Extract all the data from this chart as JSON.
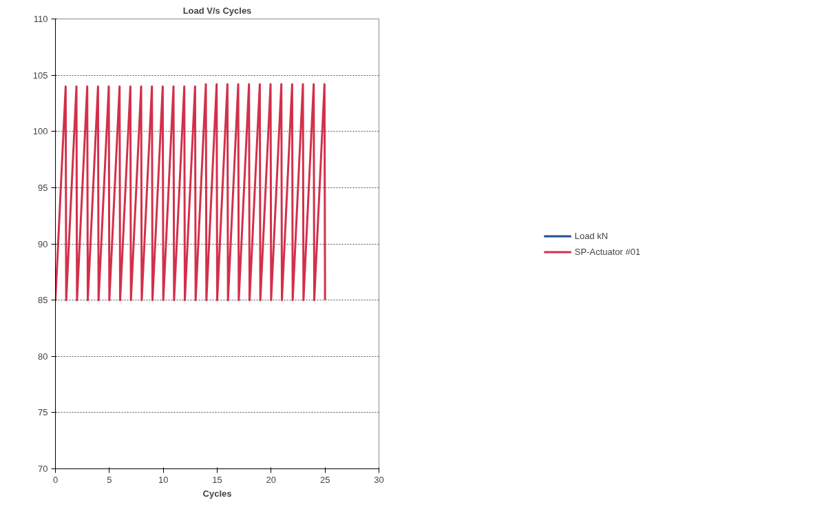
{
  "chart_data": {
    "type": "line",
    "title": "Load V/s Cycles",
    "xlabel": "Cycles",
    "xlim": [
      0,
      30
    ],
    "xticks": [
      0,
      5,
      10,
      15,
      20,
      25,
      30
    ],
    "ylim": [
      70,
      110
    ],
    "yticks": [
      70,
      75,
      80,
      85,
      90,
      95,
      100,
      105,
      110
    ],
    "grid": "y",
    "legend": "right",
    "marker": "none",
    "line_style": "solid",
    "x": [
      0,
      0.95,
      1,
      1.95,
      2,
      2.95,
      3,
      3.95,
      4,
      4.95,
      5,
      5.95,
      6,
      6.95,
      7,
      7.95,
      8,
      8.95,
      9,
      9.95,
      10,
      10.95,
      11,
      11.95,
      12,
      12.95,
      13,
      13.95,
      14,
      14.95,
      15,
      15.95,
      16,
      16.95,
      17,
      17.95,
      18,
      18.95,
      19,
      19.95,
      20,
      20.95,
      21,
      21.95,
      22,
      22.95,
      23,
      23.95,
      24,
      24.95,
      25
    ],
    "series": [
      {
        "name": "Load kN",
        "color": "#1f4e8c",
        "values": [
          null,
          null,
          null,
          null,
          null,
          null,
          null,
          null,
          null,
          null,
          null,
          null,
          null,
          null,
          null,
          null,
          null,
          null,
          null,
          null,
          null,
          null,
          null,
          null,
          null,
          null,
          null,
          null,
          null,
          null,
          null,
          null,
          null,
          null,
          null,
          null,
          null,
          null,
          null,
          null,
          null,
          null,
          null,
          null,
          null,
          null,
          null,
          null,
          null,
          null,
          null
        ]
      },
      {
        "name": "SP-Actuator #01",
        "color": "#d2304a",
        "values": [
          85,
          104,
          85,
          104,
          85,
          104,
          85,
          104,
          85,
          104,
          85,
          104,
          85,
          104,
          85,
          104,
          85,
          104,
          85,
          104,
          85,
          104,
          85,
          104,
          85,
          104,
          85,
          104.2,
          85,
          104.2,
          85,
          104.2,
          85,
          104.2,
          85,
          104.2,
          85,
          104.2,
          85,
          104.2,
          85,
          104.2,
          85,
          104.2,
          85,
          104.2,
          85,
          104.2,
          85,
          104.2,
          85
        ]
      }
    ]
  }
}
